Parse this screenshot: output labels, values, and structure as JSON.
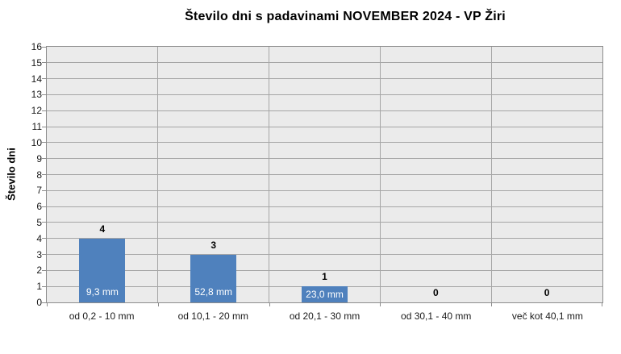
{
  "chart_data": {
    "type": "bar",
    "title": "Število dni s padavinami NOVEMBER 2024 - VP Žiri",
    "ylabel": "Število dni",
    "xlabel": "",
    "categories": [
      "od 0,2 - 10 mm",
      "od 10,1 - 20 mm",
      "od 20,1 - 30 mm",
      "od 30,1 - 40 mm",
      "več kot 40,1 mm"
    ],
    "values": [
      4,
      3,
      1,
      0,
      0
    ],
    "bar_value_labels": [
      "4",
      "3",
      "1",
      "0",
      "0"
    ],
    "bar_inner_labels": [
      "9,3 mm",
      "52,8 mm",
      "23,0 mm",
      "",
      ""
    ],
    "ylim": [
      0,
      16
    ],
    "yticks": [
      0,
      1,
      2,
      3,
      4,
      5,
      6,
      7,
      8,
      9,
      10,
      11,
      12,
      13,
      14,
      15,
      16
    ],
    "grid": true,
    "legend": "none",
    "colors": {
      "bar": "#4F81BD",
      "bar_label_text": "#FFFFFF",
      "plot_bg": "#EBEBEB",
      "gridline": "#A6A6A6",
      "plot_border": "#8C8C8C",
      "text": "#000000",
      "background": "#FFFFFF"
    }
  }
}
